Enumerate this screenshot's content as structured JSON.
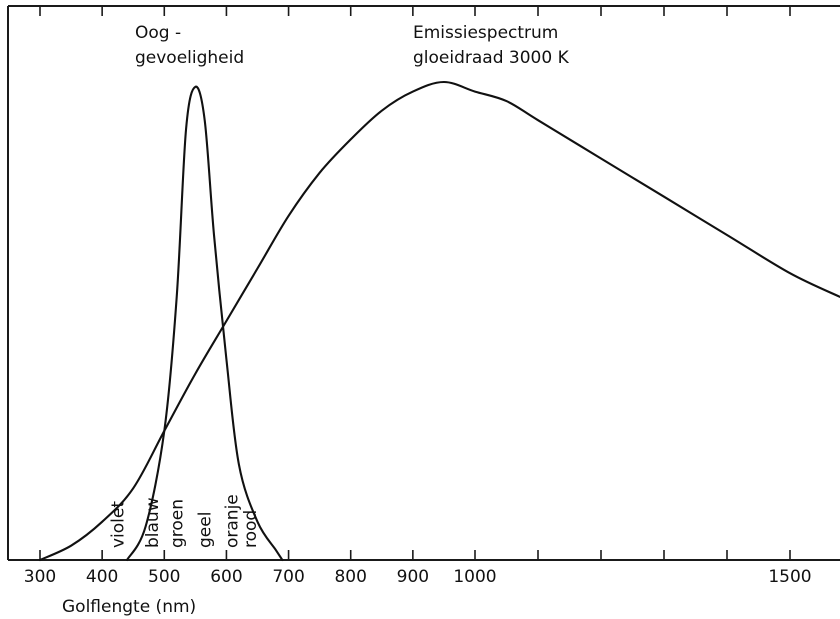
{
  "chart_data": {
    "type": "line",
    "title": "",
    "xlabel": "Golflengte  (nm)",
    "ylabel": "",
    "xlim": [
      250,
      1580
    ],
    "ylim": [
      0,
      1.0
    ],
    "x_ticks": [
      300,
      400,
      500,
      600,
      700,
      800,
      900,
      1000,
      1100,
      1200,
      1300,
      1400,
      1500
    ],
    "x_tick_labels": [
      "300",
      "400",
      "500",
      "600",
      "700",
      "800",
      "900",
      "1000",
      "",
      "",
      "",
      "",
      "1500"
    ],
    "top_ticks": [
      300,
      400,
      500,
      600,
      700,
      800,
      900,
      1000,
      1100,
      1200,
      1300,
      1400,
      1500
    ],
    "grid": false,
    "series": [
      {
        "name_lines": [
          "Emissiespectrum",
          "gloeidraad  3000 K"
        ],
        "x": [
          300,
          350,
          400,
          450,
          500,
          550,
          600,
          650,
          700,
          750,
          800,
          850,
          900,
          950,
          1000,
          1050,
          1100,
          1200,
          1300,
          1400,
          1500,
          1580
        ],
        "y": [
          0.0,
          0.03,
          0.08,
          0.15,
          0.27,
          0.39,
          0.5,
          0.61,
          0.72,
          0.81,
          0.88,
          0.94,
          0.98,
          1.0,
          0.98,
          0.96,
          0.92,
          0.84,
          0.76,
          0.68,
          0.6,
          0.55
        ]
      },
      {
        "name_lines": [
          "Oog -",
          "gevoeligheid"
        ],
        "x": [
          440,
          470,
          500,
          520,
          535,
          550,
          565,
          580,
          600,
          620,
          650,
          680,
          690
        ],
        "y": [
          0.0,
          0.07,
          0.27,
          0.55,
          0.9,
          0.99,
          0.92,
          0.68,
          0.42,
          0.2,
          0.08,
          0.02,
          0.0
        ]
      }
    ],
    "color_labels": [
      {
        "text": "violet",
        "x": 425
      },
      {
        "text": "blauw",
        "x": 480
      },
      {
        "text": "groen",
        "x": 520
      },
      {
        "text": "geel",
        "x": 565
      },
      {
        "text": "oranje",
        "x": 608
      },
      {
        "text": "rood",
        "x": 638
      }
    ]
  }
}
